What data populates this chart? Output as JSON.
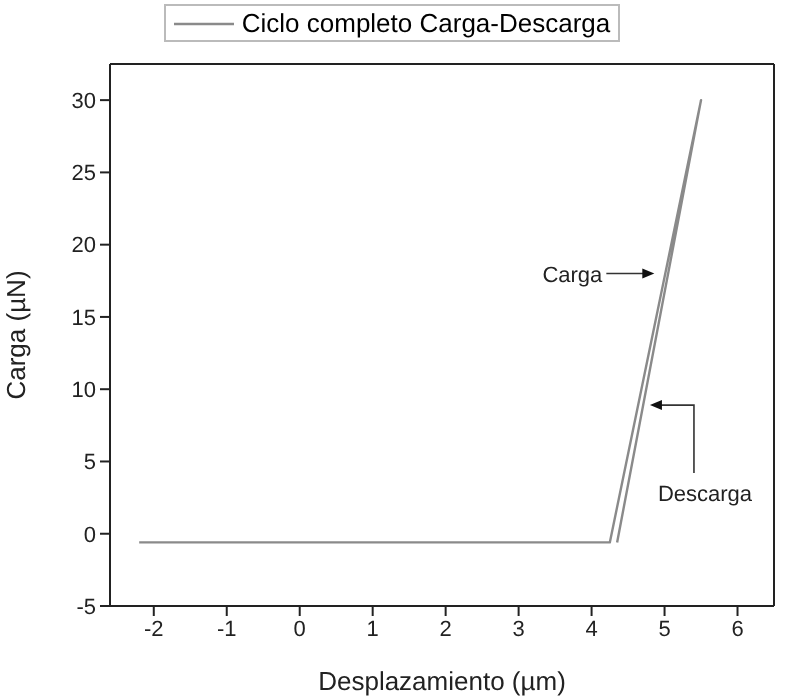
{
  "chart_data": {
    "type": "line",
    "xlabel": "Desplazamiento (µm)",
    "ylabel": "Carga (µN)",
    "series": [
      {
        "name": "Ciclo completo Carga-Descarga",
        "color": "#8a8a8a",
        "x": [
          -2.2,
          4.25,
          5.5,
          4.35
        ],
        "values": [
          -0.6,
          -0.6,
          30,
          -0.6
        ]
      }
    ],
    "xlim": [
      -2.6,
      6.5
    ],
    "xticks": [
      -2,
      -1,
      0,
      1,
      2,
      3,
      4,
      5,
      6
    ],
    "ylim": [
      -5,
      32.5
    ],
    "yticks": [
      -5,
      0,
      5,
      10,
      15,
      20,
      25,
      30
    ],
    "annotations": [
      {
        "text": "Carga",
        "x": 4.86,
        "y": 18
      },
      {
        "text": "Descarga",
        "x": 4.8,
        "y": 8.9
      }
    ],
    "legend": "top",
    "marker": "none",
    "line_style": "solid"
  }
}
